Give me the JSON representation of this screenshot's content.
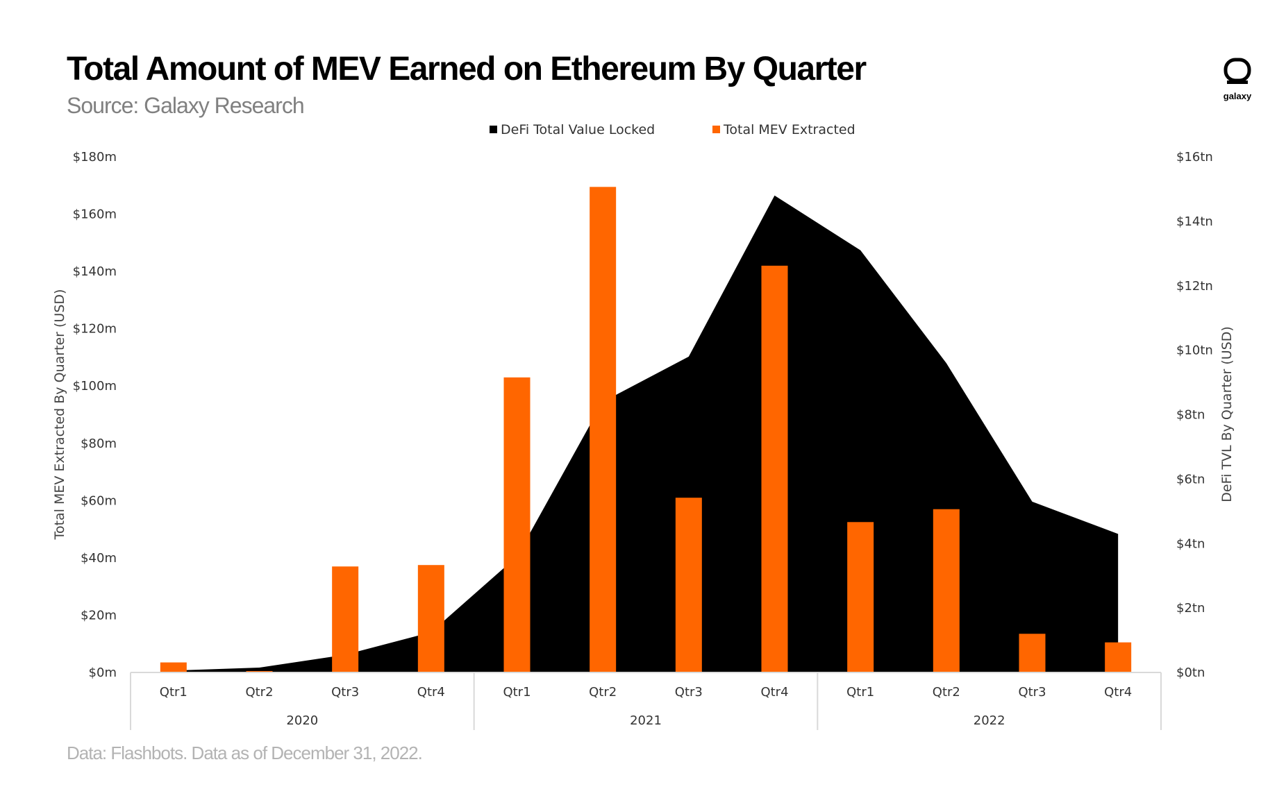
{
  "header": {
    "title": "Total Amount of MEV Earned on Ethereum By Quarter",
    "subtitle": "Source: Galaxy Research",
    "logo_label": "galaxy"
  },
  "footer": {
    "note": "Data: Flashbots. Data as of December 31, 2022."
  },
  "colors": {
    "tvl": "#000000",
    "mev": "#ff6600",
    "axis": "#d9d9d9"
  },
  "chart_data": {
    "type": "bar",
    "title": "Total Amount of MEV Earned on Ethereum By Quarter",
    "categories": [
      "Qtr1",
      "Qtr2",
      "Qtr3",
      "Qtr4",
      "Qtr1",
      "Qtr2",
      "Qtr3",
      "Qtr4",
      "Qtr1",
      "Qtr2",
      "Qtr3",
      "Qtr4"
    ],
    "years": [
      {
        "label": "2020",
        "quarters": 4
      },
      {
        "label": "2021",
        "quarters": 4
      },
      {
        "label": "2022",
        "quarters": 4
      }
    ],
    "series": [
      {
        "name": "DeFi Total Value Locked",
        "type": "area",
        "axis": "right",
        "values": [
          0.06,
          0.15,
          0.55,
          1.25,
          3.6,
          8.4,
          9.8,
          14.8,
          13.1,
          9.6,
          5.3,
          4.3
        ]
      },
      {
        "name": "Total MEV Extracted",
        "type": "bar",
        "axis": "left",
        "values": [
          3.5,
          0.5,
          37,
          37.5,
          103,
          169.5,
          61,
          142,
          52.5,
          57,
          13.5,
          10.5
        ]
      }
    ],
    "ylabel": "Total MEV Extracted By Quarter (USD)",
    "y2label": "DeFi TVL By Quarter (USD)",
    "ylim": [
      0,
      180
    ],
    "y2lim": [
      0,
      16
    ],
    "yticks": [
      "$0m",
      "$20m",
      "$40m",
      "$60m",
      "$80m",
      "$100m",
      "$120m",
      "$140m",
      "$160m",
      "$180m"
    ],
    "y2ticks": [
      "$0tn",
      "$2tn",
      "$4tn",
      "$6tn",
      "$8tn",
      "$10tn",
      "$12tn",
      "$14tn",
      "$16tn"
    ],
    "legend_position": "top-center",
    "grid": false
  }
}
